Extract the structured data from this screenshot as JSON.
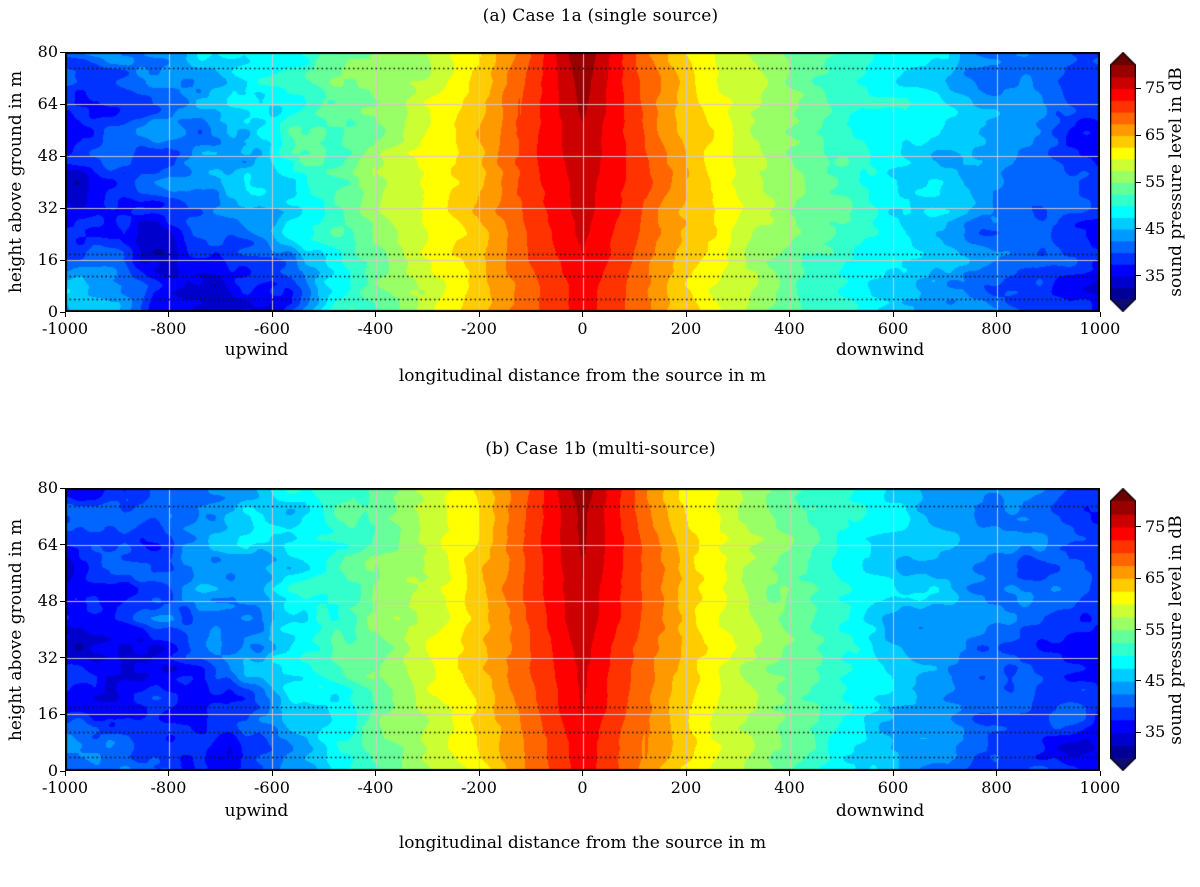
{
  "figure": {
    "background": "#ffffff",
    "grid_color": "#d8c8c8",
    "dotted_line_color": "#111111"
  },
  "chart_data": [
    {
      "type": "heatmap",
      "title": "(a) Case 1a (single source)",
      "xlabel": "longitudinal distance from the source in m",
      "ylabel": "height above ground in m",
      "xlim": [
        -1000,
        1000
      ],
      "ylim": [
        0,
        80
      ],
      "x_ticks": [
        -1000,
        -800,
        -600,
        -400,
        -200,
        0,
        200,
        400,
        600,
        800,
        1000
      ],
      "y_ticks": [
        0,
        16,
        32,
        48,
        64,
        80
      ],
      "grid": true,
      "x_annotations": [
        {
          "label": "upwind",
          "x": -630
        },
        {
          "label": "downwind",
          "x": 575
        }
      ],
      "dotted_lines_y": [
        4,
        11,
        18,
        75
      ],
      "colorbar": {
        "label": "sound pressure level in dB",
        "ticks": [
          35,
          45,
          55,
          65,
          75
        ],
        "vmin": 30,
        "vmax": 80,
        "band_step": 2.5,
        "colormap": "jet",
        "extend": "both",
        "under_color": "#0c0c73",
        "over_color": "#6a0000"
      },
      "x": [
        -1000,
        -900,
        -800,
        -700,
        -600,
        -500,
        -400,
        -300,
        -200,
        -100,
        0,
        100,
        200,
        300,
        400,
        500,
        600,
        700,
        800,
        900,
        1000
      ],
      "y": [
        0,
        8,
        16,
        32,
        48,
        64,
        80
      ],
      "values_by_y_row": [
        [
          44,
          42,
          36,
          34,
          36,
          46,
          53,
          58,
          63,
          69,
          74,
          69,
          63,
          58,
          54,
          50,
          46,
          43,
          41,
          39,
          36
        ],
        [
          48,
          45,
          38,
          34,
          37,
          47,
          53,
          58,
          63,
          69,
          74,
          69,
          63,
          58,
          54,
          50,
          46,
          43,
          41,
          39,
          36
        ],
        [
          40,
          38,
          35,
          36,
          40,
          48,
          54,
          59,
          64,
          70,
          75,
          70,
          64,
          59,
          55,
          51,
          47,
          44,
          42,
          39,
          37
        ],
        [
          34,
          36,
          39,
          43,
          47,
          52,
          56,
          60,
          65,
          71,
          76,
          71,
          65,
          60,
          56,
          52,
          48,
          45,
          42,
          40,
          37
        ],
        [
          36,
          38,
          41,
          44,
          48,
          52,
          56,
          60,
          65,
          72,
          77,
          72,
          65,
          60,
          56,
          52,
          48,
          45,
          43,
          40,
          38
        ],
        [
          37,
          39,
          42,
          45,
          48,
          52,
          55,
          59,
          64,
          71,
          78,
          71,
          64,
          59,
          55,
          52,
          49,
          46,
          43,
          41,
          38
        ],
        [
          38,
          40,
          42,
          45,
          48,
          52,
          55,
          58,
          63,
          70,
          80,
          70,
          63,
          58,
          55,
          52,
          49,
          46,
          43,
          41,
          39
        ]
      ]
    },
    {
      "type": "heatmap",
      "title": "(b) Case 1b (multi-source)",
      "xlabel": "longitudinal distance from the source in m",
      "ylabel": "height above ground in m",
      "xlim": [
        -1000,
        1000
      ],
      "ylim": [
        0,
        80
      ],
      "x_ticks": [
        -1000,
        -800,
        -600,
        -400,
        -200,
        0,
        200,
        400,
        600,
        800,
        1000
      ],
      "y_ticks": [
        0,
        16,
        32,
        48,
        64,
        80
      ],
      "grid": true,
      "x_annotations": [
        {
          "label": "upwind",
          "x": -630
        },
        {
          "label": "downwind",
          "x": 575
        }
      ],
      "dotted_lines_y": [
        4,
        11,
        18,
        75
      ],
      "colorbar": {
        "label": "sound pressure level in dB",
        "ticks": [
          35,
          45,
          55,
          65,
          75
        ],
        "vmin": 30,
        "vmax": 80,
        "band_step": 2.5,
        "colormap": "jet",
        "extend": "both",
        "under_color": "#0c0c73",
        "over_color": "#6a0000"
      },
      "x": [
        -1000,
        -900,
        -800,
        -700,
        -600,
        -500,
        -400,
        -300,
        -200,
        -100,
        0,
        100,
        200,
        300,
        400,
        500,
        600,
        700,
        800,
        900,
        1000
      ],
      "y": [
        0,
        8,
        16,
        32,
        48,
        64,
        80
      ],
      "values_by_y_row": [
        [
          43,
          41,
          38,
          36,
          41,
          47,
          52,
          57,
          62,
          68,
          74,
          68,
          62,
          57,
          52,
          48,
          45,
          42,
          40,
          38,
          36
        ],
        [
          44,
          42,
          39,
          37,
          42,
          48,
          53,
          58,
          63,
          68,
          74,
          68,
          63,
          58,
          53,
          49,
          45,
          43,
          41,
          38,
          36
        ],
        [
          40,
          39,
          37,
          38,
          42,
          48,
          53,
          58,
          63,
          69,
          75,
          69,
          63,
          58,
          53,
          49,
          46,
          43,
          41,
          39,
          37
        ],
        [
          35,
          37,
          39,
          42,
          46,
          50,
          54,
          59,
          64,
          70,
          76,
          70,
          64,
          59,
          54,
          50,
          46,
          44,
          42,
          39,
          37
        ],
        [
          36,
          38,
          40,
          43,
          46,
          50,
          54,
          59,
          64,
          71,
          77,
          71,
          64,
          59,
          54,
          50,
          47,
          44,
          42,
          40,
          38
        ],
        [
          37,
          39,
          41,
          44,
          47,
          50,
          54,
          58,
          63,
          71,
          78,
          71,
          63,
          58,
          54,
          50,
          47,
          45,
          43,
          41,
          38
        ],
        [
          38,
          40,
          42,
          44,
          47,
          50,
          53,
          57,
          62,
          70,
          79,
          70,
          62,
          57,
          53,
          50,
          47,
          45,
          43,
          41,
          39
        ]
      ]
    }
  ]
}
